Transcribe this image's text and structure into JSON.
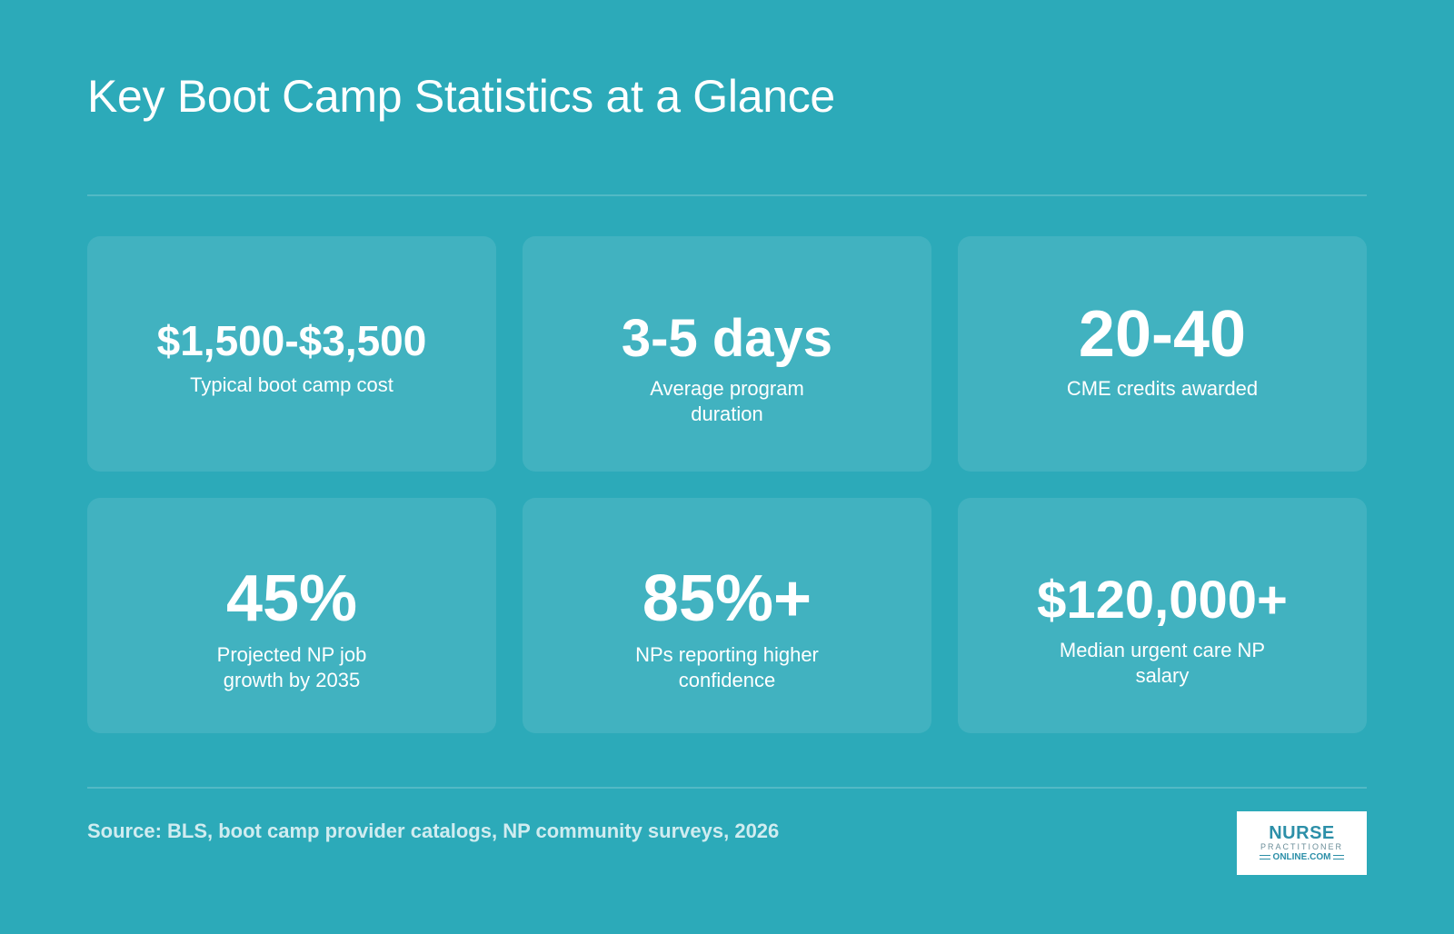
{
  "title": "Key Boot Camp Statistics at a Glance",
  "stats": [
    {
      "value": "$1,500-$3,500",
      "label": "Typical boot camp cost"
    },
    {
      "value": "3-5 days",
      "label": "Average program duration"
    },
    {
      "value": "20-40",
      "label": "CME credits awarded"
    },
    {
      "value": "45%",
      "label": "Projected NP job growth by 2035"
    },
    {
      "value": "85%+",
      "label": "NPs reporting higher confidence"
    },
    {
      "value": "$120,000+",
      "label": "Median urgent care NP salary"
    }
  ],
  "source": "Source: BLS, boot camp provider catalogs, NP community surveys, 2026",
  "logo": {
    "line1": "NURSE",
    "line2": "PRACTITIONER",
    "line3": "ONLINE.COM"
  },
  "colors": {
    "background": "#2caab9",
    "card": "#40b2c0",
    "text": "#ffffff",
    "logo_accent": "#2c8fa8"
  }
}
